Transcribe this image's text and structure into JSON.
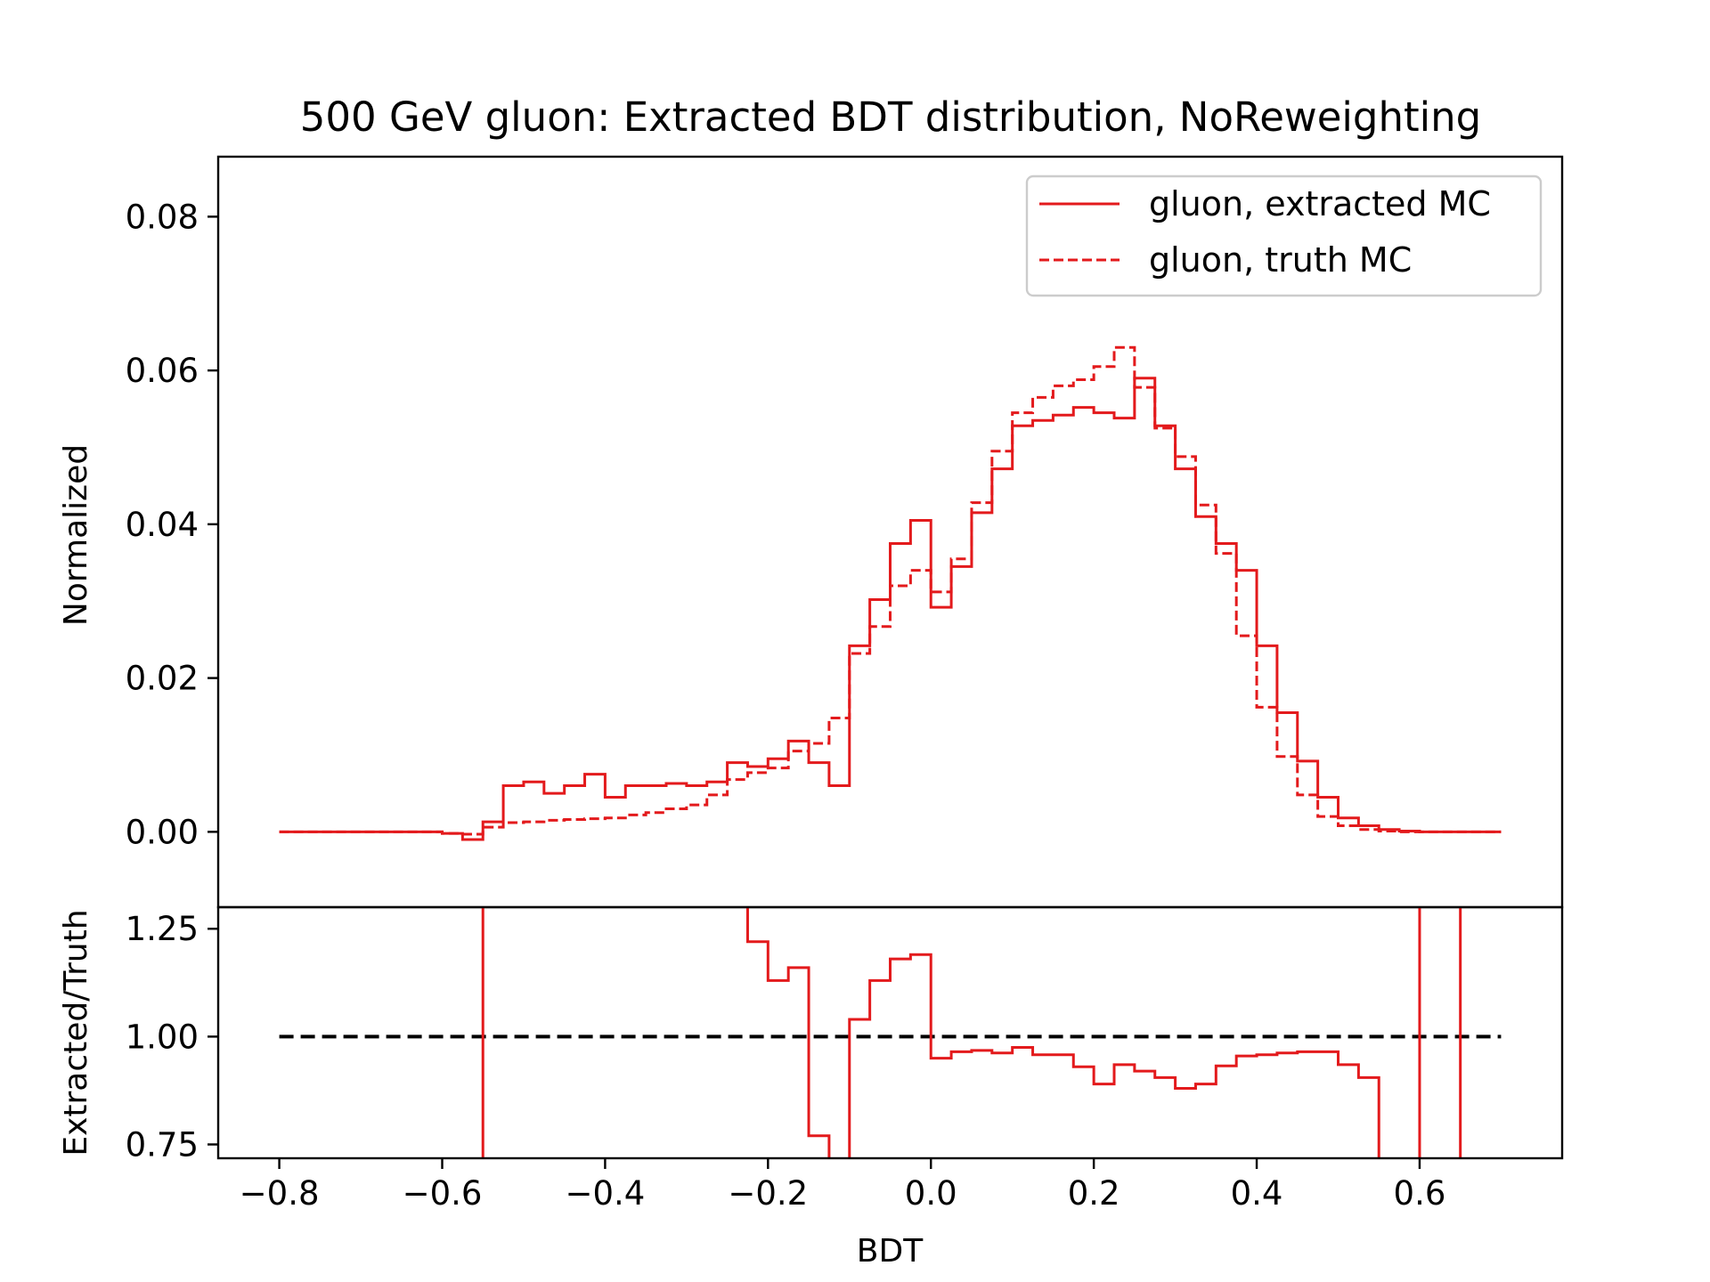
{
  "chart_data": {
    "title": "500 GeV gluon: Extracted BDT distribution, NoReweighting",
    "colors": {
      "series": "#e31a1c",
      "reference": "#000000",
      "frame": "#000000"
    },
    "xlabel": "BDT",
    "xlim": [
      -0.875,
      0.775
    ],
    "xticks": [
      -0.8,
      -0.6,
      -0.4,
      -0.2,
      0.0,
      0.2,
      0.4,
      0.6
    ],
    "xtick_labels": [
      "−0.8",
      "−0.6",
      "−0.4",
      "−0.2",
      "0.0",
      "0.2",
      "0.4",
      "0.6"
    ],
    "bin_edges": [
      -0.8,
      -0.775,
      -0.75,
      -0.725,
      -0.7,
      -0.675,
      -0.65,
      -0.625,
      -0.6,
      -0.575,
      -0.55,
      -0.525,
      -0.5,
      -0.475,
      -0.45,
      -0.425,
      -0.4,
      -0.375,
      -0.35,
      -0.325,
      -0.3,
      -0.275,
      -0.25,
      -0.225,
      -0.2,
      -0.175,
      -0.15,
      -0.125,
      -0.1,
      -0.075,
      -0.05,
      -0.025,
      0.0,
      0.025,
      0.05,
      0.075,
      0.1,
      0.125,
      0.15,
      0.175,
      0.2,
      0.225,
      0.25,
      0.275,
      0.3,
      0.325,
      0.35,
      0.375,
      0.4,
      0.425,
      0.45,
      0.475,
      0.5,
      0.525,
      0.55,
      0.575,
      0.6,
      0.625,
      0.65,
      0.675,
      0.7
    ],
    "main": {
      "type": "line",
      "ylabel": "Normalized",
      "ylim": [
        -0.0098,
        0.0878
      ],
      "yticks": [
        0.0,
        0.02,
        0.04,
        0.06,
        0.08
      ],
      "ytick_labels": [
        "0.00",
        "0.02",
        "0.04",
        "0.06",
        "0.08"
      ],
      "legend": {
        "placement": "upper right",
        "entries": [
          "gluon, extracted MC",
          "gluon, truth MC"
        ]
      },
      "series": [
        {
          "name": "gluon, extracted MC",
          "style": "solid",
          "values": [
            0,
            0,
            0,
            0,
            0,
            0,
            0,
            0,
            -0.0002,
            -0.001,
            0.0013,
            0.006,
            0.0065,
            0.005,
            0.006,
            0.0075,
            0.0045,
            0.006,
            0.006,
            0.0063,
            0.006,
            0.0065,
            0.009,
            0.0085,
            0.0095,
            0.0118,
            0.009,
            0.006,
            0.0242,
            0.0302,
            0.0375,
            0.0405,
            0.0292,
            0.0345,
            0.0415,
            0.0472,
            0.0528,
            0.0535,
            0.0542,
            0.0552,
            0.0545,
            0.0538,
            0.059,
            0.0528,
            0.0472,
            0.041,
            0.0375,
            0.034,
            0.0242,
            0.0155,
            0.0092,
            0.0045,
            0.0018,
            0.0008,
            0.0003,
            0.0001,
            0,
            0,
            0,
            0
          ]
        },
        {
          "name": "gluon, truth MC",
          "style": "dashed",
          "values": [
            0,
            0,
            0,
            0,
            0,
            0,
            0,
            0,
            -0.0002,
            -0.0003,
            0.0006,
            0.0012,
            0.0013,
            0.0015,
            0.0016,
            0.0017,
            0.0018,
            0.0022,
            0.0025,
            0.003,
            0.0035,
            0.0048,
            0.0068,
            0.0077,
            0.0083,
            0.0105,
            0.0115,
            0.0148,
            0.0232,
            0.0267,
            0.032,
            0.034,
            0.0312,
            0.0355,
            0.0428,
            0.0495,
            0.0545,
            0.0565,
            0.058,
            0.0588,
            0.0605,
            0.063,
            0.0578,
            0.0525,
            0.0488,
            0.0425,
            0.0362,
            0.0255,
            0.0162,
            0.0098,
            0.0048,
            0.002,
            0.0008,
            0.0003,
            0.0001,
            0,
            0,
            0,
            0,
            0
          ]
        }
      ]
    },
    "ratio": {
      "type": "line",
      "ylabel": "Extracted/Truth",
      "ylim": [
        0.718,
        1.3
      ],
      "yticks": [
        0.75,
        1.0,
        1.25
      ],
      "ytick_labels": [
        "0.75",
        "1.00",
        "1.25"
      ],
      "reference_line": {
        "y": 1.0,
        "x": [
          -0.8,
          0.7
        ],
        "style": "dashed"
      },
      "spikes_x": [
        -0.55,
        0.6,
        0.65
      ],
      "series": [
        {
          "style": "solid",
          "bin_edges": [
            -0.225,
            -0.2,
            -0.175,
            -0.15,
            -0.125,
            -0.1,
            -0.075,
            -0.05,
            -0.025,
            0.0,
            0.025,
            0.05,
            0.075,
            0.1,
            0.125,
            0.15,
            0.175,
            0.2,
            0.225,
            0.25,
            0.275,
            0.3,
            0.325,
            0.35,
            0.375,
            0.4,
            0.425,
            0.45,
            0.475,
            0.5,
            0.525,
            0.55
          ],
          "values": [
            1.22,
            1.13,
            1.16,
            0.77,
            0.6,
            1.04,
            1.13,
            1.18,
            1.19,
            0.95,
            0.965,
            0.968,
            0.962,
            0.975,
            0.958,
            0.958,
            0.93,
            0.89,
            0.935,
            0.92,
            0.905,
            0.88,
            0.89,
            0.932,
            0.955,
            0.958,
            0.962,
            0.965,
            0.965,
            0.935,
            0.905
          ],
          "start_from": 1.5,
          "end_to": 0.6
        }
      ]
    }
  }
}
